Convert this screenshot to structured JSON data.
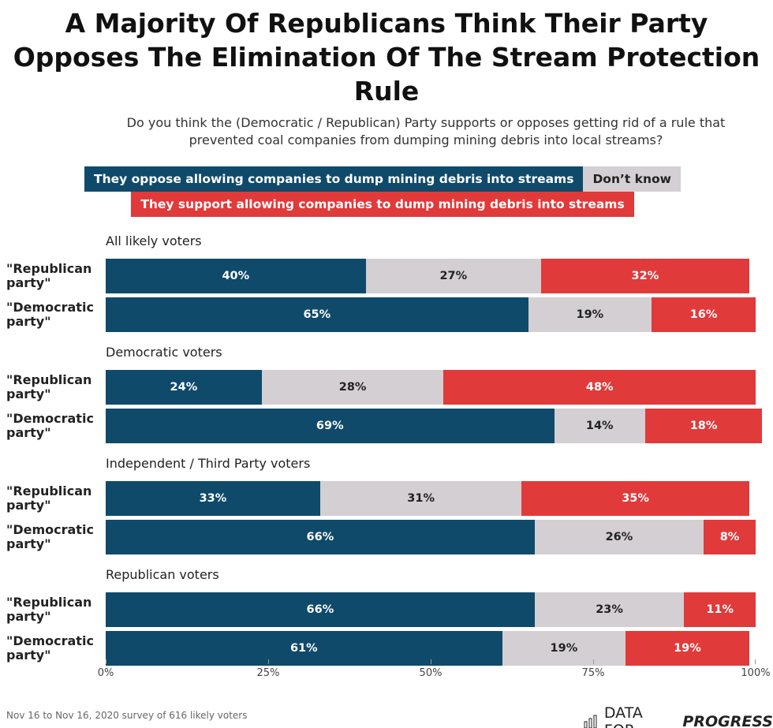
{
  "chart_data": {
    "type": "stacked-bar-horizontal",
    "title": "A Majority Of Republicans Think Their Party Opposes The Elimination Of The Stream Protection Rule",
    "subtitle": "Do you think the (Democratic / Republican) Party supports or opposes getting rid of a rule that prevented coal companies from dumping mining debris into local streams?",
    "groups": [
      {
        "name": "All likely voters",
        "categories": [
          "\"Republican party\"",
          "\"Democratic party\""
        ]
      },
      {
        "name": "Democratic voters",
        "categories": [
          "\"Republican party\"",
          "\"Democratic party\""
        ]
      },
      {
        "name": "Independent / Third Party voters",
        "categories": [
          "\"Republican party\"",
          "\"Democratic party\""
        ]
      },
      {
        "name": "Republican voters",
        "categories": [
          "\"Republican party\"",
          "\"Democratic party\""
        ]
      }
    ],
    "series": [
      {
        "name": "They oppose allowing companies to dump mining debris into streams",
        "color": "#0f4a6b",
        "text_color": "#ffffff",
        "values": [
          40,
          65,
          24,
          69,
          33,
          66,
          66,
          61
        ],
        "value_labels": [
          "40%",
          "65%",
          "24%",
          "69%",
          "33%",
          "66%",
          "66%",
          "61%"
        ]
      },
      {
        "name": "Don’t know",
        "color": "#d3cfd3",
        "text_color": "#222222",
        "values": [
          27,
          19,
          28,
          14,
          31,
          26,
          23,
          19
        ],
        "value_labels": [
          "27%",
          "19%",
          "28%",
          "14%",
          "31%",
          "26%",
          "23%",
          "19%"
        ]
      },
      {
        "name": "They support allowing companies to dump mining debris into streams",
        "color": "#e03a3a",
        "text_color": "#ffffff",
        "values": [
          32,
          16,
          48,
          18,
          35,
          8,
          11,
          19
        ],
        "value_labels": [
          "32%",
          "16%",
          "48%",
          "18%",
          "35%",
          "8%",
          "11%",
          "19%"
        ]
      }
    ],
    "xlim": [
      0,
      100
    ],
    "xticks": [
      {
        "value": 0,
        "label": "0%"
      },
      {
        "value": 25,
        "label": "25%"
      },
      {
        "value": 50,
        "label": "50%"
      },
      {
        "value": 75,
        "label": "75%"
      },
      {
        "value": 100,
        "label": "100%"
      }
    ],
    "source": "Nov 16 to Nov 16, 2020 survey of 616 likely voters",
    "brand": "DATA FOR",
    "brand_emphasis": "PROGRESS"
  }
}
